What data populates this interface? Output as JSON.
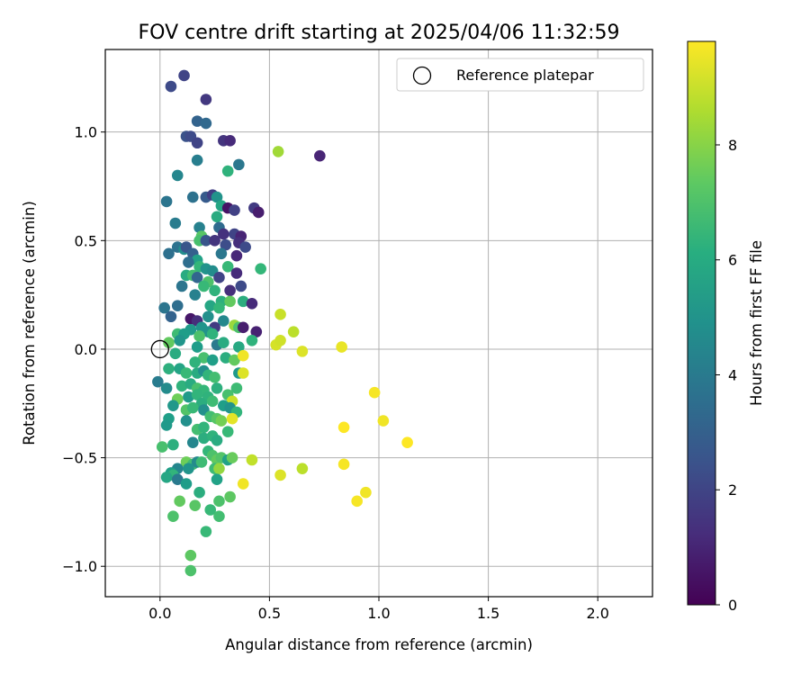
{
  "chart_data": {
    "type": "scatter",
    "title": "FOV centre drift starting at 2025/04/06 11:32:59",
    "xlabel": "Angular distance from reference (arcmin)",
    "ylabel": "Rotation from reference (arcmin)",
    "xlim": [
      -0.25,
      2.25
    ],
    "ylim": [
      -1.14,
      1.38
    ],
    "xticks": [
      0.0,
      0.5,
      1.0,
      1.5,
      2.0
    ],
    "xtick_labels": [
      "0.0",
      "0.5",
      "1.0",
      "1.5",
      "2.0"
    ],
    "yticks": [
      -1.0,
      -0.5,
      0.0,
      0.5,
      1.0
    ],
    "ytick_labels": [
      "−1.0",
      "−0.5",
      "0.0",
      "0.5",
      "1.0"
    ],
    "grid": true,
    "legend": {
      "placement": "top-right",
      "label": "Reference platepar"
    },
    "reference_point": {
      "x": 0.0,
      "y": 0.0
    },
    "colorbar": {
      "label": "Hours from first FF file",
      "range": [
        0,
        9.8
      ],
      "ticks": [
        0,
        2,
        4,
        6,
        8
      ],
      "tick_labels": [
        "0",
        "2",
        "4",
        "6",
        "8"
      ],
      "colormap": "viridis"
    },
    "points": [
      {
        "x": 0.05,
        "y": 1.21,
        "h": 2.2
      },
      {
        "x": 0.11,
        "y": 1.26,
        "h": 2.0
      },
      {
        "x": 0.21,
        "y": 1.15,
        "h": 1.6
      },
      {
        "x": 0.17,
        "y": 1.05,
        "h": 3.1
      },
      {
        "x": 0.21,
        "y": 1.04,
        "h": 3.3
      },
      {
        "x": 0.12,
        "y": 0.98,
        "h": 2.5
      },
      {
        "x": 0.14,
        "y": 0.98,
        "h": 2.2
      },
      {
        "x": 0.17,
        "y": 0.95,
        "h": 2.0
      },
      {
        "x": 0.29,
        "y": 0.96,
        "h": 1.5
      },
      {
        "x": 0.32,
        "y": 0.96,
        "h": 1.2
      },
      {
        "x": 0.73,
        "y": 0.89,
        "h": 1.0
      },
      {
        "x": 0.54,
        "y": 0.91,
        "h": 8.4
      },
      {
        "x": 0.17,
        "y": 0.87,
        "h": 4.2
      },
      {
        "x": 0.36,
        "y": 0.85,
        "h": 3.9
      },
      {
        "x": 0.31,
        "y": 0.82,
        "h": 6.3
      },
      {
        "x": 0.08,
        "y": 0.8,
        "h": 4.5
      },
      {
        "x": 0.03,
        "y": 0.68,
        "h": 3.8
      },
      {
        "x": 0.15,
        "y": 0.7,
        "h": 3.7
      },
      {
        "x": 0.21,
        "y": 0.7,
        "h": 2.8
      },
      {
        "x": 0.24,
        "y": 0.71,
        "h": 1.8
      },
      {
        "x": 0.26,
        "y": 0.7,
        "h": 5.0
      },
      {
        "x": 0.28,
        "y": 0.66,
        "h": 5.8
      },
      {
        "x": 0.31,
        "y": 0.65,
        "h": 0.5
      },
      {
        "x": 0.34,
        "y": 0.64,
        "h": 1.9
      },
      {
        "x": 0.43,
        "y": 0.65,
        "h": 1.7
      },
      {
        "x": 0.45,
        "y": 0.63,
        "h": 0.8
      },
      {
        "x": 0.26,
        "y": 0.61,
        "h": 6.0
      },
      {
        "x": 0.07,
        "y": 0.58,
        "h": 4.1
      },
      {
        "x": 0.18,
        "y": 0.56,
        "h": 4.3
      },
      {
        "x": 0.27,
        "y": 0.56,
        "h": 3.4
      },
      {
        "x": 0.29,
        "y": 0.53,
        "h": 1.4
      },
      {
        "x": 0.34,
        "y": 0.53,
        "h": 2.0
      },
      {
        "x": 0.37,
        "y": 0.52,
        "h": 1.0
      },
      {
        "x": 0.19,
        "y": 0.52,
        "h": 7.2
      },
      {
        "x": 0.18,
        "y": 0.5,
        "h": 6.9
      },
      {
        "x": 0.21,
        "y": 0.5,
        "h": 2.6
      },
      {
        "x": 0.25,
        "y": 0.5,
        "h": 1.5
      },
      {
        "x": 0.3,
        "y": 0.48,
        "h": 2.3
      },
      {
        "x": 0.36,
        "y": 0.49,
        "h": 1.3
      },
      {
        "x": 0.39,
        "y": 0.47,
        "h": 2.2
      },
      {
        "x": 0.08,
        "y": 0.47,
        "h": 3.7
      },
      {
        "x": 0.11,
        "y": 0.46,
        "h": 4.8
      },
      {
        "x": 0.12,
        "y": 0.47,
        "h": 2.6
      },
      {
        "x": 0.15,
        "y": 0.44,
        "h": 3.0
      },
      {
        "x": 0.04,
        "y": 0.44,
        "h": 3.6
      },
      {
        "x": 0.28,
        "y": 0.44,
        "h": 3.9
      },
      {
        "x": 0.35,
        "y": 0.43,
        "h": 1.1
      },
      {
        "x": 0.17,
        "y": 0.41,
        "h": 5.6
      },
      {
        "x": 0.13,
        "y": 0.4,
        "h": 3.5
      },
      {
        "x": 0.18,
        "y": 0.38,
        "h": 6.5
      },
      {
        "x": 0.21,
        "y": 0.37,
        "h": 5.0
      },
      {
        "x": 0.24,
        "y": 0.36,
        "h": 4.8
      },
      {
        "x": 0.31,
        "y": 0.38,
        "h": 6.6
      },
      {
        "x": 0.35,
        "y": 0.35,
        "h": 1.2
      },
      {
        "x": 0.46,
        "y": 0.37,
        "h": 6.5
      },
      {
        "x": 0.12,
        "y": 0.34,
        "h": 6.0
      },
      {
        "x": 0.15,
        "y": 0.34,
        "h": 6.8
      },
      {
        "x": 0.17,
        "y": 0.33,
        "h": 3.2
      },
      {
        "x": 0.27,
        "y": 0.33,
        "h": 2.0
      },
      {
        "x": 0.22,
        "y": 0.31,
        "h": 7.0
      },
      {
        "x": 0.1,
        "y": 0.29,
        "h": 3.8
      },
      {
        "x": 0.2,
        "y": 0.29,
        "h": 6.6
      },
      {
        "x": 0.25,
        "y": 0.27,
        "h": 6.3
      },
      {
        "x": 0.32,
        "y": 0.27,
        "h": 1.3
      },
      {
        "x": 0.37,
        "y": 0.29,
        "h": 2.2
      },
      {
        "x": 0.16,
        "y": 0.25,
        "h": 4.3
      },
      {
        "x": 0.28,
        "y": 0.22,
        "h": 6.2
      },
      {
        "x": 0.32,
        "y": 0.22,
        "h": 7.4
      },
      {
        "x": 0.38,
        "y": 0.22,
        "h": 6.1
      },
      {
        "x": 0.42,
        "y": 0.21,
        "h": 1.2
      },
      {
        "x": 0.23,
        "y": 0.2,
        "h": 5.8
      },
      {
        "x": 0.27,
        "y": 0.19,
        "h": 6.5
      },
      {
        "x": 0.02,
        "y": 0.19,
        "h": 3.8
      },
      {
        "x": 0.08,
        "y": 0.2,
        "h": 3.5
      },
      {
        "x": 0.05,
        "y": 0.15,
        "h": 3.1
      },
      {
        "x": 0.22,
        "y": 0.15,
        "h": 4.9
      },
      {
        "x": 0.14,
        "y": 0.14,
        "h": 0.6
      },
      {
        "x": 0.17,
        "y": 0.13,
        "h": 1.3
      },
      {
        "x": 0.29,
        "y": 0.13,
        "h": 4.6
      },
      {
        "x": 0.34,
        "y": 0.11,
        "h": 8.3
      },
      {
        "x": 0.36,
        "y": 0.1,
        "h": 7.0
      },
      {
        "x": 0.38,
        "y": 0.1,
        "h": 0.8
      },
      {
        "x": 0.19,
        "y": 0.1,
        "h": 5.1
      },
      {
        "x": 0.25,
        "y": 0.1,
        "h": 1.7
      },
      {
        "x": 0.14,
        "y": 0.09,
        "h": 5.3
      },
      {
        "x": 0.22,
        "y": 0.08,
        "h": 5.0
      },
      {
        "x": 0.24,
        "y": 0.07,
        "h": 6.3
      },
      {
        "x": 0.08,
        "y": 0.07,
        "h": 6.7
      },
      {
        "x": 0.11,
        "y": 0.07,
        "h": 5.4
      },
      {
        "x": 0.18,
        "y": 0.06,
        "h": 7.0
      },
      {
        "x": 0.44,
        "y": 0.08,
        "h": 0.9
      },
      {
        "x": 0.55,
        "y": 0.16,
        "h": 9.0
      },
      {
        "x": 0.61,
        "y": 0.08,
        "h": 8.8
      },
      {
        "x": 0.53,
        "y": 0.02,
        "h": 9.2
      },
      {
        "x": 0.55,
        "y": 0.04,
        "h": 9.1
      },
      {
        "x": 0.65,
        "y": -0.01,
        "h": 9.3
      },
      {
        "x": 0.83,
        "y": 0.01,
        "h": 9.5
      },
      {
        "x": 0.04,
        "y": 0.03,
        "h": 7.4
      },
      {
        "x": 0.09,
        "y": 0.04,
        "h": 5.1
      },
      {
        "x": 0.17,
        "y": 0.01,
        "h": 5.4
      },
      {
        "x": 0.26,
        "y": 0.02,
        "h": 4.0
      },
      {
        "x": 0.29,
        "y": 0.03,
        "h": 6.0
      },
      {
        "x": 0.36,
        "y": 0.01,
        "h": 5.9
      },
      {
        "x": 0.42,
        "y": 0.04,
        "h": 6.3
      },
      {
        "x": 0.07,
        "y": -0.02,
        "h": 6.0
      },
      {
        "x": 0.2,
        "y": -0.04,
        "h": 6.9
      },
      {
        "x": 0.24,
        "y": -0.05,
        "h": 5.5
      },
      {
        "x": 0.3,
        "y": -0.04,
        "h": 6.1
      },
      {
        "x": 0.34,
        "y": -0.05,
        "h": 7.4
      },
      {
        "x": 0.38,
        "y": -0.03,
        "h": 9.6
      },
      {
        "x": 0.16,
        "y": -0.06,
        "h": 6.3
      },
      {
        "x": 0.04,
        "y": -0.09,
        "h": 6.2
      },
      {
        "x": 0.09,
        "y": -0.09,
        "h": 5.7
      },
      {
        "x": 0.12,
        "y": -0.11,
        "h": 6.6
      },
      {
        "x": 0.17,
        "y": -0.11,
        "h": 6.0
      },
      {
        "x": 0.2,
        "y": -0.1,
        "h": 4.9
      },
      {
        "x": 0.22,
        "y": -0.12,
        "h": 6.4
      },
      {
        "x": 0.36,
        "y": -0.11,
        "h": 5.3
      },
      {
        "x": 0.38,
        "y": -0.11,
        "h": 9.3
      },
      {
        "x": 0.25,
        "y": -0.13,
        "h": 6.8
      },
      {
        "x": -0.01,
        "y": -0.15,
        "h": 4.1
      },
      {
        "x": 0.03,
        "y": -0.18,
        "h": 4.7
      },
      {
        "x": 0.1,
        "y": -0.17,
        "h": 6.3
      },
      {
        "x": 0.14,
        "y": -0.16,
        "h": 6.0
      },
      {
        "x": 0.17,
        "y": -0.18,
        "h": 6.9
      },
      {
        "x": 0.2,
        "y": -0.19,
        "h": 6.5
      },
      {
        "x": 0.26,
        "y": -0.18,
        "h": 6.2
      },
      {
        "x": 0.35,
        "y": -0.18,
        "h": 6.7
      },
      {
        "x": 0.13,
        "y": -0.22,
        "h": 5.3
      },
      {
        "x": 0.17,
        "y": -0.21,
        "h": 6.4
      },
      {
        "x": 0.22,
        "y": -0.22,
        "h": 6.3
      },
      {
        "x": 0.31,
        "y": -0.21,
        "h": 6.9
      },
      {
        "x": 0.08,
        "y": -0.23,
        "h": 7.6
      },
      {
        "x": 0.19,
        "y": -0.25,
        "h": 6.1
      },
      {
        "x": 0.24,
        "y": -0.24,
        "h": 6.7
      },
      {
        "x": 0.33,
        "y": -0.24,
        "h": 9.0
      },
      {
        "x": 0.06,
        "y": -0.26,
        "h": 5.2
      },
      {
        "x": 0.12,
        "y": -0.28,
        "h": 7.1
      },
      {
        "x": 0.15,
        "y": -0.27,
        "h": 6.6
      },
      {
        "x": 0.2,
        "y": -0.28,
        "h": 4.9
      },
      {
        "x": 0.29,
        "y": -0.26,
        "h": 5.5
      },
      {
        "x": 0.32,
        "y": -0.27,
        "h": 5.0
      },
      {
        "x": 0.35,
        "y": -0.29,
        "h": 6.4
      },
      {
        "x": 0.23,
        "y": -0.31,
        "h": 6.8
      },
      {
        "x": 0.26,
        "y": -0.32,
        "h": 7.2
      },
      {
        "x": 0.28,
        "y": -0.33,
        "h": 7.7
      },
      {
        "x": 0.33,
        "y": -0.32,
        "h": 9.4
      },
      {
        "x": 0.04,
        "y": -0.32,
        "h": 5.5
      },
      {
        "x": 0.12,
        "y": -0.33,
        "h": 4.9
      },
      {
        "x": 0.03,
        "y": -0.35,
        "h": 5.3
      },
      {
        "x": 0.17,
        "y": -0.37,
        "h": 6.8
      },
      {
        "x": 0.2,
        "y": -0.36,
        "h": 6.4
      },
      {
        "x": 0.31,
        "y": -0.38,
        "h": 6.6
      },
      {
        "x": 0.2,
        "y": -0.41,
        "h": 6.1
      },
      {
        "x": 0.24,
        "y": -0.4,
        "h": 6.3
      },
      {
        "x": 0.26,
        "y": -0.42,
        "h": 6.0
      },
      {
        "x": 0.15,
        "y": -0.43,
        "h": 4.5
      },
      {
        "x": 0.06,
        "y": -0.44,
        "h": 6.2
      },
      {
        "x": 0.01,
        "y": -0.45,
        "h": 6.9
      },
      {
        "x": 0.22,
        "y": -0.47,
        "h": 6.5
      },
      {
        "x": 0.24,
        "y": -0.49,
        "h": 7.0
      },
      {
        "x": 0.26,
        "y": -0.51,
        "h": 7.4
      },
      {
        "x": 0.28,
        "y": -0.5,
        "h": 7.1
      },
      {
        "x": 0.31,
        "y": -0.51,
        "h": 5.6
      },
      {
        "x": 0.33,
        "y": -0.5,
        "h": 7.5
      },
      {
        "x": 0.42,
        "y": -0.51,
        "h": 8.9
      },
      {
        "x": 0.12,
        "y": -0.52,
        "h": 7.6
      },
      {
        "x": 0.15,
        "y": -0.53,
        "h": 6.8
      },
      {
        "x": 0.17,
        "y": -0.52,
        "h": 4.7
      },
      {
        "x": 0.19,
        "y": -0.52,
        "h": 6.7
      },
      {
        "x": 0.08,
        "y": -0.55,
        "h": 4.5
      },
      {
        "x": 0.13,
        "y": -0.55,
        "h": 5.1
      },
      {
        "x": 0.25,
        "y": -0.55,
        "h": 6.7
      },
      {
        "x": 0.27,
        "y": -0.55,
        "h": 8.2
      },
      {
        "x": 0.05,
        "y": -0.57,
        "h": 5.5
      },
      {
        "x": 0.06,
        "y": -0.58,
        "h": 6.4
      },
      {
        "x": 0.03,
        "y": -0.59,
        "h": 5.8
      },
      {
        "x": 0.08,
        "y": -0.6,
        "h": 4.0
      },
      {
        "x": 0.26,
        "y": -0.6,
        "h": 5.6
      },
      {
        "x": 0.12,
        "y": -0.62,
        "h": 5.4
      },
      {
        "x": 0.18,
        "y": -0.66,
        "h": 6.1
      },
      {
        "x": 0.27,
        "y": -0.7,
        "h": 7.0
      },
      {
        "x": 0.32,
        "y": -0.68,
        "h": 7.3
      },
      {
        "x": 0.09,
        "y": -0.7,
        "h": 7.4
      },
      {
        "x": 0.16,
        "y": -0.72,
        "h": 7.2
      },
      {
        "x": 0.23,
        "y": -0.74,
        "h": 6.6
      },
      {
        "x": 0.06,
        "y": -0.77,
        "h": 7.0
      },
      {
        "x": 0.27,
        "y": -0.77,
        "h": 6.8
      },
      {
        "x": 0.21,
        "y": -0.84,
        "h": 6.6
      },
      {
        "x": 0.14,
        "y": -0.95,
        "h": 7.3
      },
      {
        "x": 0.14,
        "y": -1.02,
        "h": 7.0
      },
      {
        "x": 0.55,
        "y": -0.58,
        "h": 9.3
      },
      {
        "x": 0.65,
        "y": -0.55,
        "h": 8.8
      },
      {
        "x": 0.38,
        "y": -0.62,
        "h": 9.6
      },
      {
        "x": 0.84,
        "y": -0.36,
        "h": 9.8
      },
      {
        "x": 0.84,
        "y": -0.53,
        "h": 9.7
      },
      {
        "x": 0.9,
        "y": -0.7,
        "h": 9.7
      },
      {
        "x": 0.94,
        "y": -0.66,
        "h": 9.6
      },
      {
        "x": 0.98,
        "y": -0.2,
        "h": 9.7
      },
      {
        "x": 1.02,
        "y": -0.33,
        "h": 9.6
      },
      {
        "x": 1.13,
        "y": -0.43,
        "h": 9.8
      }
    ]
  }
}
